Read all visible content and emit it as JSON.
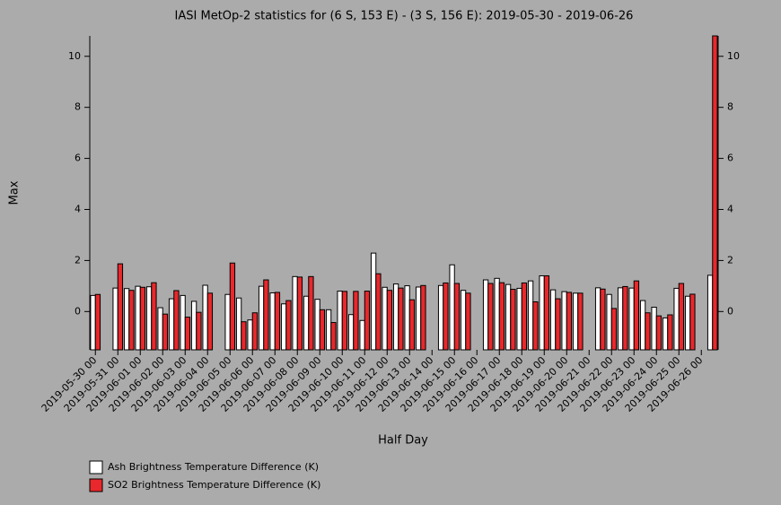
{
  "chart_data": {
    "type": "bar",
    "title": "IASI MetOp-2 statistics for (6 S, 153 E) - (3 S, 156 E): 2019-05-30 - 2019-06-26",
    "x_label": "Half Day",
    "y_label": "Max",
    "categories": [
      "2019-05-30 00",
      null,
      "2019-05-31 00",
      null,
      "2019-06-01 00",
      null,
      "2019-06-02 00",
      null,
      "2019-06-03 00",
      null,
      "2019-06-04 00",
      null,
      "2019-06-05 00",
      null,
      "2019-06-06 00",
      null,
      "2019-06-07 00",
      null,
      "2019-06-08 00",
      null,
      "2019-06-09 00",
      null,
      "2019-06-10 00",
      null,
      "2019-06-11 00",
      null,
      "2019-06-12 00",
      null,
      "2019-06-13 00",
      null,
      "2019-06-14 00",
      null,
      "2019-06-15 00",
      null,
      "2019-06-16 00",
      null,
      "2019-06-17 00",
      null,
      "2019-06-18 00",
      null,
      "2019-06-19 00",
      null,
      "2019-06-20 00",
      null,
      "2019-06-21 00",
      null,
      "2019-06-22 00",
      null,
      "2019-06-23 00",
      null,
      "2019-06-24 00",
      null,
      "2019-06-25 00",
      null,
      "2019-06-26 00",
      null
    ],
    "series": [
      {
        "name": "Ash Brightness Temperature Difference (K)",
        "color": "#ffffff",
        "values": [
          0.63,
          null,
          0.92,
          0.9,
          0.99,
          0.97,
          0.15,
          0.5,
          0.63,
          0.4,
          1.03,
          null,
          0.67,
          0.53,
          -0.33,
          0.99,
          0.73,
          0.3,
          1.37,
          0.6,
          0.48,
          0.07,
          0.8,
          -0.12,
          -0.35,
          2.29,
          0.95,
          1.08,
          1.01,
          0.96,
          null,
          1.02,
          1.83,
          0.83,
          null,
          1.24,
          1.3,
          1.06,
          0.91,
          1.2,
          1.4,
          0.85,
          0.78,
          0.72,
          null,
          0.93,
          0.67,
          0.93,
          0.92,
          0.43,
          0.17,
          -0.25,
          0.91,
          0.6,
          null,
          1.42
        ]
      },
      {
        "name": "SO2 Brightness Temperature Difference (K)",
        "color": "#e8282c",
        "values": [
          0.67,
          null,
          1.87,
          0.83,
          0.95,
          1.13,
          -0.1,
          0.82,
          -0.22,
          -0.03,
          0.72,
          null,
          1.9,
          -0.4,
          -0.05,
          1.24,
          0.75,
          0.43,
          1.35,
          1.37,
          0.07,
          -0.43,
          0.79,
          0.79,
          0.8,
          1.48,
          0.83,
          0.92,
          0.46,
          1.02,
          null,
          1.12,
          1.1,
          0.72,
          null,
          1.1,
          1.13,
          0.87,
          1.12,
          0.38,
          1.4,
          0.5,
          0.75,
          0.72,
          null,
          0.88,
          0.12,
          0.98,
          1.2,
          -0.05,
          -0.17,
          -0.13,
          1.1,
          0.68,
          null,
          10.8
        ]
      }
    ],
    "ylim": [
      -1.5,
      10.8
    ],
    "yticks": [
      0,
      2,
      4,
      6,
      8,
      10
    ],
    "grid": false
  }
}
